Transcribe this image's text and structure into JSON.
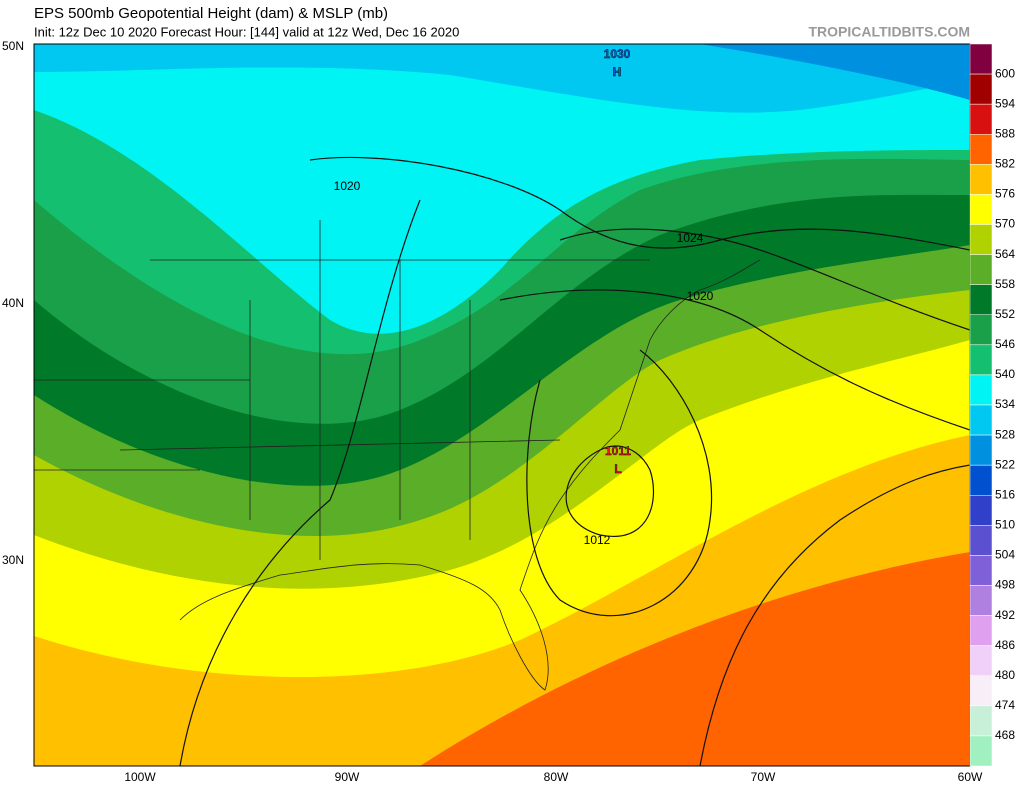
{
  "header": {
    "title": "EPS 500mb Geopotential Height (dam) & MSLP (mb)",
    "subtitle": "Init: 12z Dec 10 2020   Forecast Hour: [144]   valid at 12z Wed, Dec 16 2020",
    "source": "TROPICALTIDBITS.COM"
  },
  "map": {
    "latitude_labels": [
      "50N",
      "40N",
      "30N"
    ],
    "longitude_labels": [
      "100W",
      "90W",
      "80W",
      "70W",
      "60W"
    ],
    "pressure_centers": [
      {
        "symbol": "H",
        "pressure": 1030
      },
      {
        "symbol": "L",
        "pressure": 1011
      }
    ],
    "isobar_labels": [
      1020,
      1024,
      1020,
      1012
    ]
  },
  "colorbar": {
    "labels": [
      600,
      594,
      588,
      582,
      576,
      570,
      564,
      558,
      552,
      546,
      540,
      534,
      528,
      522,
      516,
      510,
      504,
      498,
      492,
      486,
      480,
      474,
      468
    ]
  }
}
